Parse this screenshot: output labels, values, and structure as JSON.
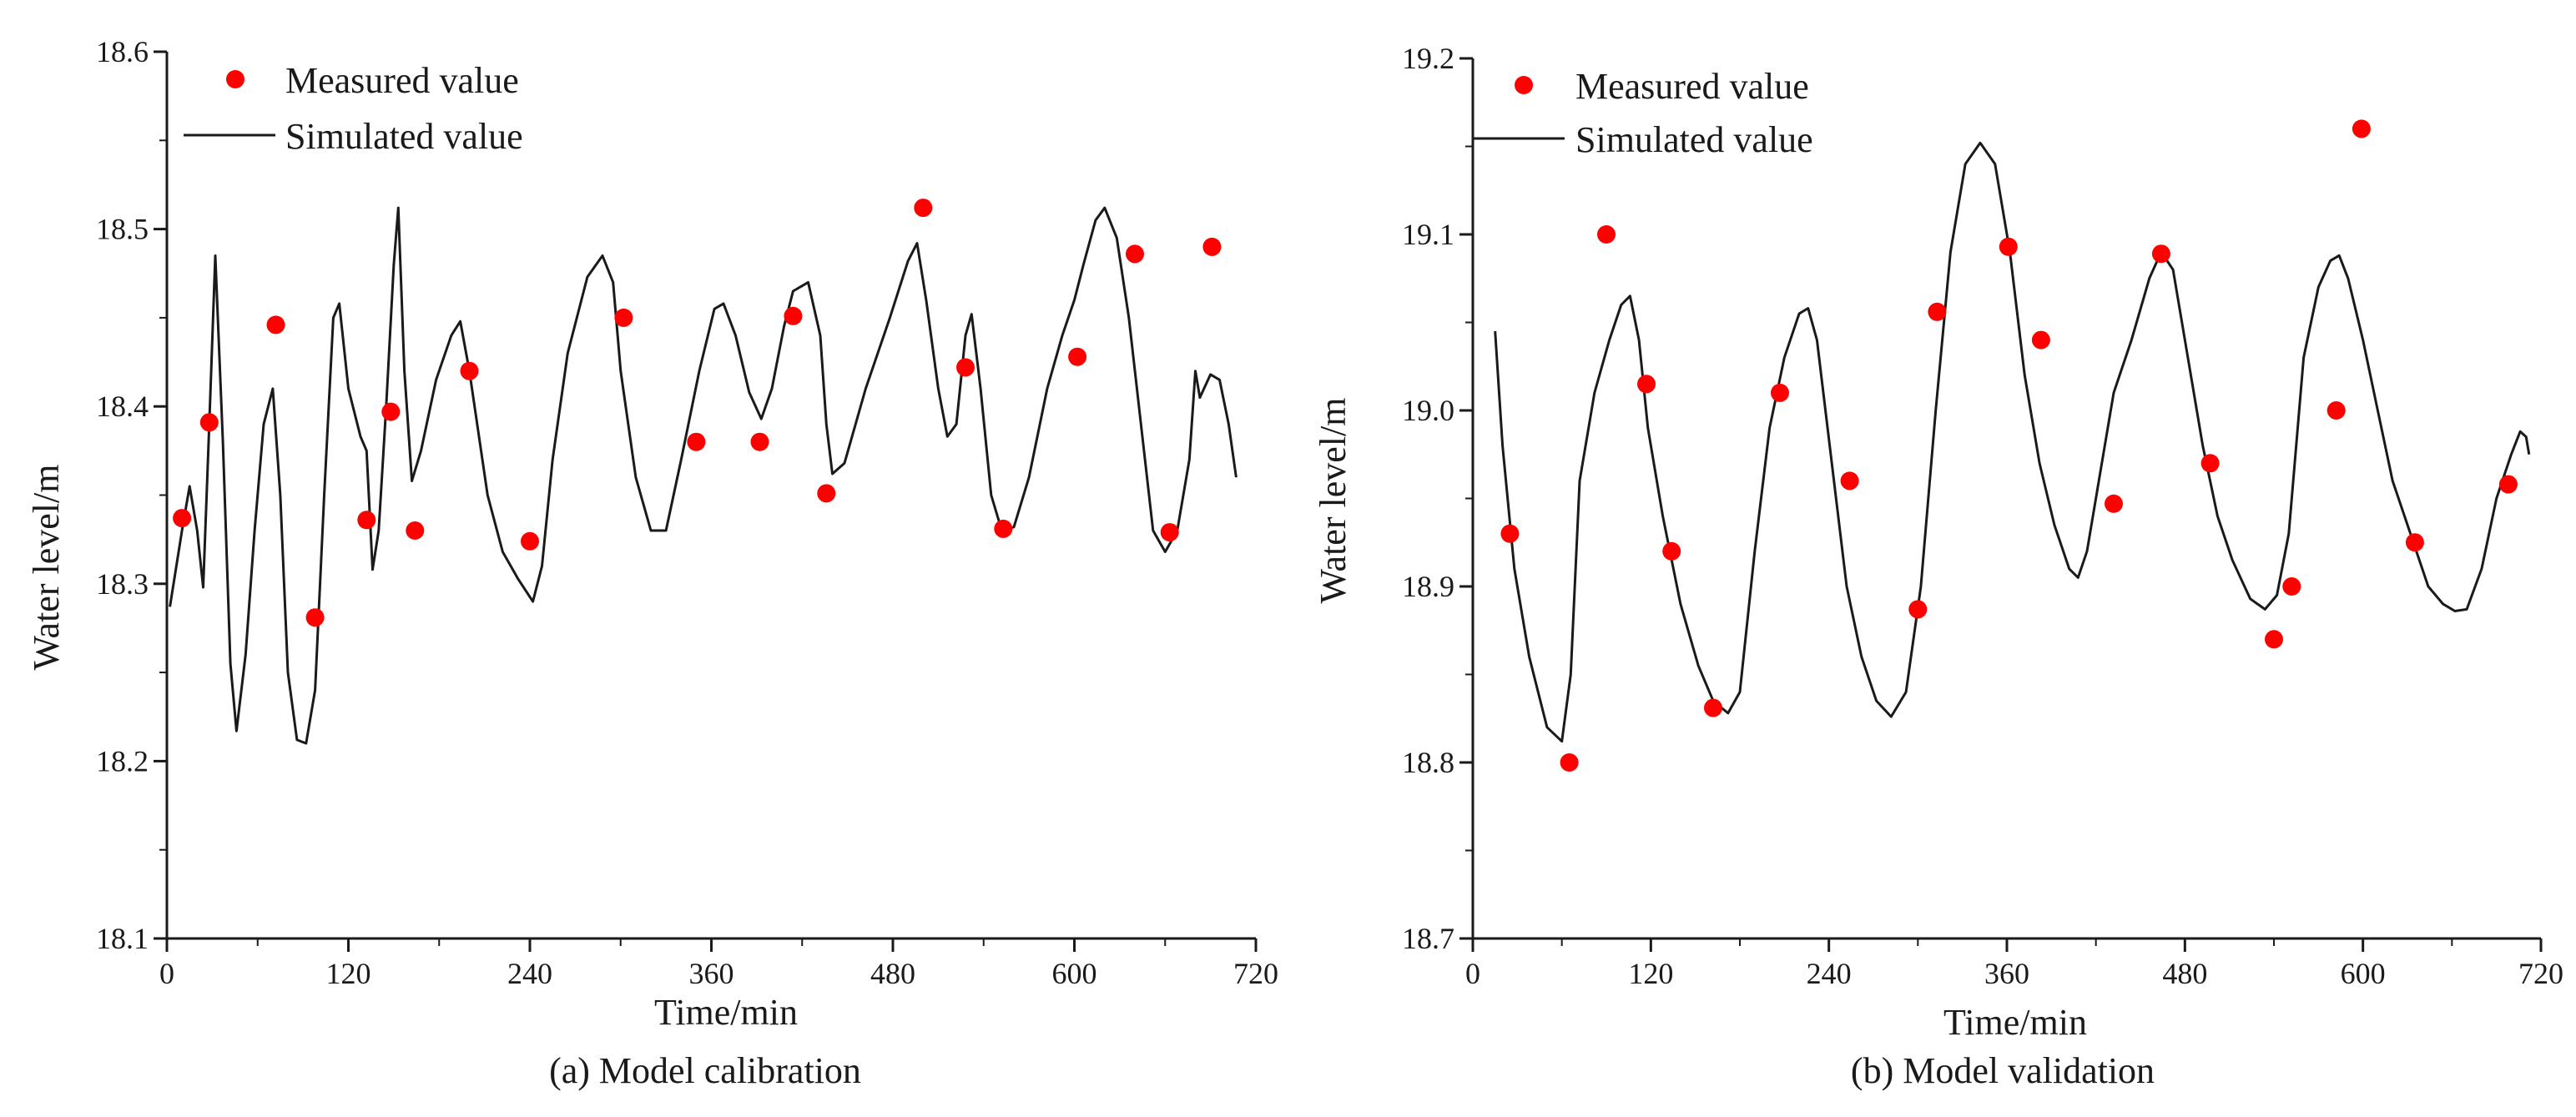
{
  "chart_data": [
    {
      "type": "scatter+line",
      "caption": "(a) Model calibration",
      "xlabel": "Time/min",
      "ylabel": "Water level/m",
      "xlim": [
        0,
        720
      ],
      "ylim": [
        18.1,
        18.6
      ],
      "xticks": [
        "0",
        "120",
        "240",
        "360",
        "480",
        "600",
        "720"
      ],
      "yticks": [
        "18.1",
        "18.2",
        "18.3",
        "18.4",
        "18.5",
        "18.6"
      ],
      "grid": false,
      "legend_position": "top-left",
      "legend": {
        "measured": "Measured value",
        "simulated": "Simulated value"
      },
      "colors": {
        "measured": "#ff0000",
        "simulated": "#1a1a1a"
      },
      "series": [
        {
          "name": "Measured value",
          "kind": "scatter",
          "points": [
            [
              10,
              18.337
            ],
            [
              28,
              18.391
            ],
            [
              72,
              18.446
            ],
            [
              98,
              18.281
            ],
            [
              132,
              18.336
            ],
            [
              148,
              18.397
            ],
            [
              164,
              18.33
            ],
            [
              200,
              18.42
            ],
            [
              240,
              18.324
            ],
            [
              302,
              18.45
            ],
            [
              350,
              18.38
            ],
            [
              392,
              18.38
            ],
            [
              414,
              18.451
            ],
            [
              436,
              18.351
            ],
            [
              500,
              18.512
            ],
            [
              528,
              18.422
            ],
            [
              553,
              18.331
            ],
            [
              602,
              18.428
            ],
            [
              640,
              18.486
            ],
            [
              663,
              18.329
            ],
            [
              691,
              18.49
            ]
          ]
        },
        {
          "name": "Simulated value",
          "kind": "line",
          "points": [
            [
              2,
              18.287
            ],
            [
              10,
              18.33
            ],
            [
              15,
              18.355
            ],
            [
              20,
              18.33
            ],
            [
              24,
              18.298
            ],
            [
              28,
              18.39
            ],
            [
              32,
              18.485
            ],
            [
              37,
              18.38
            ],
            [
              42,
              18.255
            ],
            [
              46,
              18.217
            ],
            [
              52,
              18.26
            ],
            [
              58,
              18.33
            ],
            [
              64,
              18.39
            ],
            [
              70,
              18.41
            ],
            [
              75,
              18.35
            ],
            [
              80,
              18.25
            ],
            [
              86,
              18.212
            ],
            [
              92,
              18.21
            ],
            [
              98,
              18.24
            ],
            [
              104,
              18.35
            ],
            [
              110,
              18.45
            ],
            [
              114,
              18.458
            ],
            [
              120,
              18.41
            ],
            [
              128,
              18.383
            ],
            [
              132,
              18.375
            ],
            [
              136,
              18.308
            ],
            [
              140,
              18.33
            ],
            [
              145,
              18.4
            ],
            [
              150,
              18.48
            ],
            [
              153,
              18.512
            ],
            [
              157,
              18.42
            ],
            [
              162,
              18.358
            ],
            [
              168,
              18.375
            ],
            [
              178,
              18.415
            ],
            [
              188,
              18.44
            ],
            [
              194,
              18.448
            ],
            [
              200,
              18.42
            ],
            [
              212,
              18.35
            ],
            [
              222,
              18.318
            ],
            [
              232,
              18.303
            ],
            [
              242,
              18.29
            ],
            [
              248,
              18.31
            ],
            [
              255,
              18.37
            ],
            [
              265,
              18.43
            ],
            [
              278,
              18.473
            ],
            [
              288,
              18.485
            ],
            [
              295,
              18.47
            ],
            [
              300,
              18.42
            ],
            [
              310,
              18.36
            ],
            [
              320,
              18.33
            ],
            [
              330,
              18.33
            ],
            [
              340,
              18.37
            ],
            [
              352,
              18.42
            ],
            [
              362,
              18.455
            ],
            [
              368,
              18.458
            ],
            [
              376,
              18.44
            ],
            [
              385,
              18.408
            ],
            [
              393,
              18.393
            ],
            [
              400,
              18.41
            ],
            [
              408,
              18.445
            ],
            [
              414,
              18.465
            ],
            [
              424,
              18.47
            ],
            [
              432,
              18.44
            ],
            [
              436,
              18.39
            ],
            [
              440,
              18.362
            ],
            [
              448,
              18.368
            ],
            [
              462,
              18.41
            ],
            [
              478,
              18.45
            ],
            [
              490,
              18.482
            ],
            [
              496,
              18.492
            ],
            [
              502,
              18.46
            ],
            [
              510,
              18.41
            ],
            [
              516,
              18.383
            ],
            [
              522,
              18.39
            ],
            [
              528,
              18.44
            ],
            [
              532,
              18.452
            ],
            [
              538,
              18.41
            ],
            [
              545,
              18.35
            ],
            [
              552,
              18.33
            ],
            [
              560,
              18.332
            ],
            [
              570,
              18.36
            ],
            [
              582,
              18.41
            ],
            [
              592,
              18.44
            ],
            [
              600,
              18.46
            ],
            [
              606,
              18.48
            ],
            [
              614,
              18.505
            ],
            [
              620,
              18.512
            ],
            [
              628,
              18.495
            ],
            [
              636,
              18.45
            ],
            [
              644,
              18.39
            ],
            [
              652,
              18.33
            ],
            [
              660,
              18.318
            ],
            [
              668,
              18.33
            ],
            [
              676,
              18.37
            ],
            [
              680,
              18.42
            ],
            [
              683,
              18.405
            ],
            [
              690,
              18.418
            ],
            [
              696,
              18.415
            ],
            [
              702,
              18.39
            ],
            [
              707,
              18.36
            ]
          ]
        }
      ]
    },
    {
      "type": "scatter+line",
      "caption": "(b) Model validation",
      "xlabel": "Time/min",
      "ylabel": "Water level/m",
      "xlim": [
        0,
        720
      ],
      "ylim": [
        18.7,
        19.2
      ],
      "xticks": [
        "0",
        "120",
        "240",
        "360",
        "480",
        "600",
        "720"
      ],
      "yticks": [
        "18.7",
        "18.8",
        "18.9",
        "19.0",
        "19.1",
        "19.2"
      ],
      "grid": false,
      "legend_position": "top-left",
      "legend": {
        "measured": "Measured value",
        "simulated": "Simulated value"
      },
      "colors": {
        "measured": "#ff0000",
        "simulated": "#1a1a1a"
      },
      "series": [
        {
          "name": "Measured value",
          "kind": "scatter",
          "points": [
            [
              25,
              18.93
            ],
            [
              65,
              18.8
            ],
            [
              90,
              19.1
            ],
            [
              117,
              19.015
            ],
            [
              134,
              18.92
            ],
            [
              162,
              18.831
            ],
            [
              207,
              19.01
            ],
            [
              254,
              18.96
            ],
            [
              300,
              18.887
            ],
            [
              313,
              19.056
            ],
            [
              361,
              19.093
            ],
            [
              383,
              19.04
            ],
            [
              432,
              18.947
            ],
            [
              464,
              19.089
            ],
            [
              497,
              18.97
            ],
            [
              540,
              18.87
            ],
            [
              552,
              18.9
            ],
            [
              582,
              19.0
            ],
            [
              599,
              19.16
            ],
            [
              635,
              18.925
            ],
            [
              698,
              18.958
            ]
          ]
        },
        {
          "name": "Simulated value",
          "kind": "line",
          "points": [
            [
              15,
              19.045
            ],
            [
              20,
              18.98
            ],
            [
              28,
              18.91
            ],
            [
              38,
              18.86
            ],
            [
              50,
              18.82
            ],
            [
              60,
              18.812
            ],
            [
              66,
              18.85
            ],
            [
              72,
              18.96
            ],
            [
              82,
              19.01
            ],
            [
              92,
              19.04
            ],
            [
              100,
              19.06
            ],
            [
              106,
              19.065
            ],
            [
              112,
              19.04
            ],
            [
              118,
              18.99
            ],
            [
              128,
              18.94
            ],
            [
              140,
              18.89
            ],
            [
              152,
              18.855
            ],
            [
              162,
              18.835
            ],
            [
              172,
              18.828
            ],
            [
              180,
              18.84
            ],
            [
              190,
              18.92
            ],
            [
              200,
              18.99
            ],
            [
              210,
              19.03
            ],
            [
              220,
              19.055
            ],
            [
              226,
              19.058
            ],
            [
              232,
              19.04
            ],
            [
              242,
              18.97
            ],
            [
              252,
              18.9
            ],
            [
              262,
              18.86
            ],
            [
              272,
              18.835
            ],
            [
              282,
              18.826
            ],
            [
              292,
              18.84
            ],
            [
              302,
              18.9
            ],
            [
              312,
              19.0
            ],
            [
              322,
              19.09
            ],
            [
              332,
              19.14
            ],
            [
              342,
              19.152
            ],
            [
              352,
              19.14
            ],
            [
              362,
              19.09
            ],
            [
              372,
              19.02
            ],
            [
              382,
              18.97
            ],
            [
              392,
              18.935
            ],
            [
              402,
              18.91
            ],
            [
              408,
              18.905
            ],
            [
              414,
              18.92
            ],
            [
              422,
              18.96
            ],
            [
              432,
              19.01
            ],
            [
              444,
              19.04
            ],
            [
              456,
              19.075
            ],
            [
              464,
              19.09
            ],
            [
              472,
              19.08
            ],
            [
              482,
              19.03
            ],
            [
              492,
              18.98
            ],
            [
              502,
              18.94
            ],
            [
              512,
              18.915
            ],
            [
              524,
              18.893
            ],
            [
              534,
              18.887
            ],
            [
              542,
              18.895
            ],
            [
              550,
              18.93
            ],
            [
              560,
              19.03
            ],
            [
              570,
              19.07
            ],
            [
              578,
              19.085
            ],
            [
              584,
              19.088
            ],
            [
              590,
              19.075
            ],
            [
              600,
              19.04
            ],
            [
              610,
              19.0
            ],
            [
              620,
              18.96
            ],
            [
              632,
              18.93
            ],
            [
              644,
              18.9
            ],
            [
              654,
              18.89
            ],
            [
              662,
              18.886
            ],
            [
              670,
              18.887
            ],
            [
              680,
              18.91
            ],
            [
              690,
              18.95
            ],
            [
              700,
              18.975
            ],
            [
              706,
              18.988
            ],
            [
              710,
              18.985
            ],
            [
              712,
              18.975
            ]
          ]
        }
      ]
    }
  ]
}
